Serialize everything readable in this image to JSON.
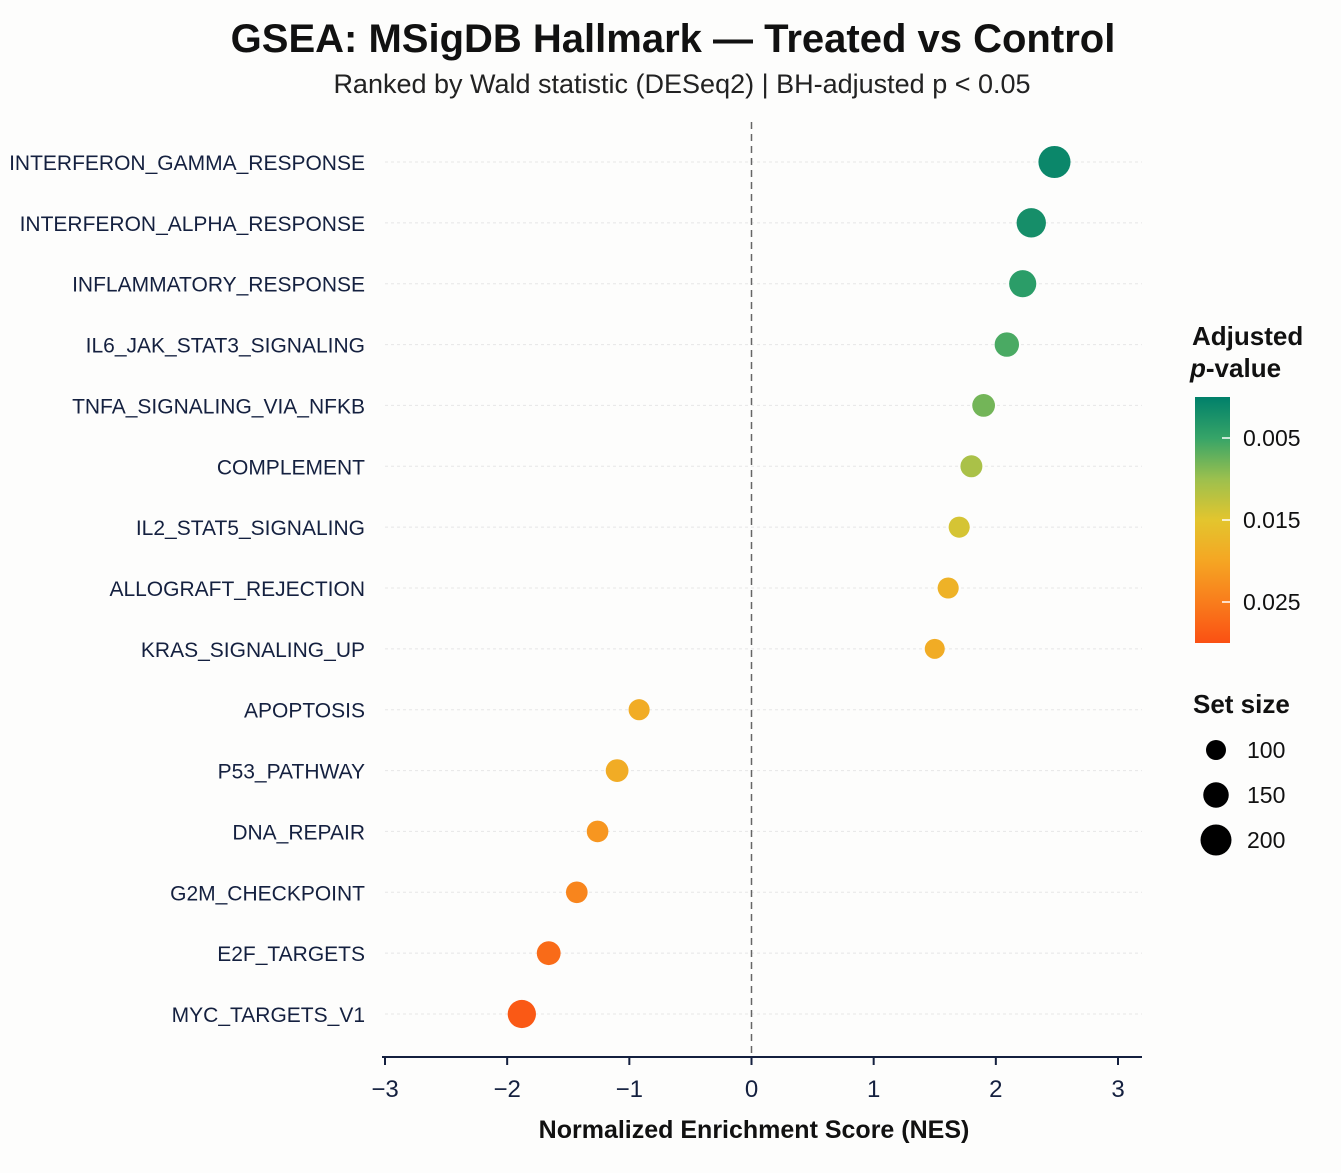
{
  "chart_data": {
    "type": "scatter",
    "title": "GSEA: MSigDB Hallmark — Treated vs Control",
    "subtitle": "Ranked by Wald statistic (DESeq2)  |  BH-adjusted p < 0.05",
    "xlabel": "Normalized Enrichment Score (NES)",
    "xlim": [
      -3,
      3
    ],
    "xticks": [
      -3,
      -2,
      -1,
      0,
      1,
      2,
      3
    ],
    "xtick_labels": [
      "−3",
      "−2",
      "−1",
      "0",
      "1",
      "2",
      "3"
    ],
    "reference_line_x": 0,
    "grid": "horizontal dotted",
    "points": [
      {
        "pathway": "INTERFERON_GAMMA_RESPONSE",
        "nes": 2.48,
        "padj": 0.001,
        "size": 210
      },
      {
        "pathway": "INTERFERON_ALPHA_RESPONSE",
        "nes": 2.29,
        "padj": 0.002,
        "size": 185
      },
      {
        "pathway": "INFLAMMATORY_RESPONSE",
        "nes": 2.22,
        "padj": 0.004,
        "size": 165
      },
      {
        "pathway": "IL6_JAK_STAT3_SIGNALING",
        "nes": 2.09,
        "padj": 0.006,
        "size": 140
      },
      {
        "pathway": "TNFA_SIGNALING_VIA_NFKB",
        "nes": 1.9,
        "padj": 0.008,
        "size": 125
      },
      {
        "pathway": "COMPLEMENT",
        "nes": 1.8,
        "padj": 0.011,
        "size": 118
      },
      {
        "pathway": "IL2_STAT5_SIGNALING",
        "nes": 1.7,
        "padj": 0.014,
        "size": 110
      },
      {
        "pathway": "ALLOGRAFT_REJECTION",
        "nes": 1.61,
        "padj": 0.018,
        "size": 110
      },
      {
        "pathway": "KRAS_SIGNALING_UP",
        "nes": 1.5,
        "padj": 0.019,
        "size": 100
      },
      {
        "pathway": "APOPTOSIS",
        "nes": -0.92,
        "padj": 0.019,
        "size": 110
      },
      {
        "pathway": "P53_PATHWAY",
        "nes": -1.1,
        "padj": 0.019,
        "size": 125
      },
      {
        "pathway": "DNA_REPAIR",
        "nes": -1.26,
        "padj": 0.022,
        "size": 115
      },
      {
        "pathway": "G2M_CHECKPOINT",
        "nes": -1.43,
        "padj": 0.024,
        "size": 115
      },
      {
        "pathway": "E2F_TARGETS",
        "nes": -1.66,
        "padj": 0.027,
        "size": 135
      },
      {
        "pathway": "MYC_TARGETS_V1",
        "nes": -1.88,
        "padj": 0.029,
        "size": 175
      }
    ],
    "color_legend": {
      "title_line1": "Adjusted",
      "title_line2_italic": "p",
      "title_line2_rest": "-value",
      "range": [
        0.0,
        0.03
      ],
      "ticks": [
        0.005,
        0.015,
        0.025
      ],
      "tick_labels": [
        "0.005",
        "0.015",
        "0.025"
      ],
      "colors_low_to_high": [
        "#00806a",
        "#36a468",
        "#9cc04e",
        "#e3c52e",
        "#f5a623",
        "#f97d1c",
        "#fa5013"
      ]
    },
    "size_legend": {
      "title": "Set size",
      "sizes": [
        100,
        150,
        200
      ],
      "labels": [
        "100",
        "150",
        "200"
      ]
    }
  }
}
